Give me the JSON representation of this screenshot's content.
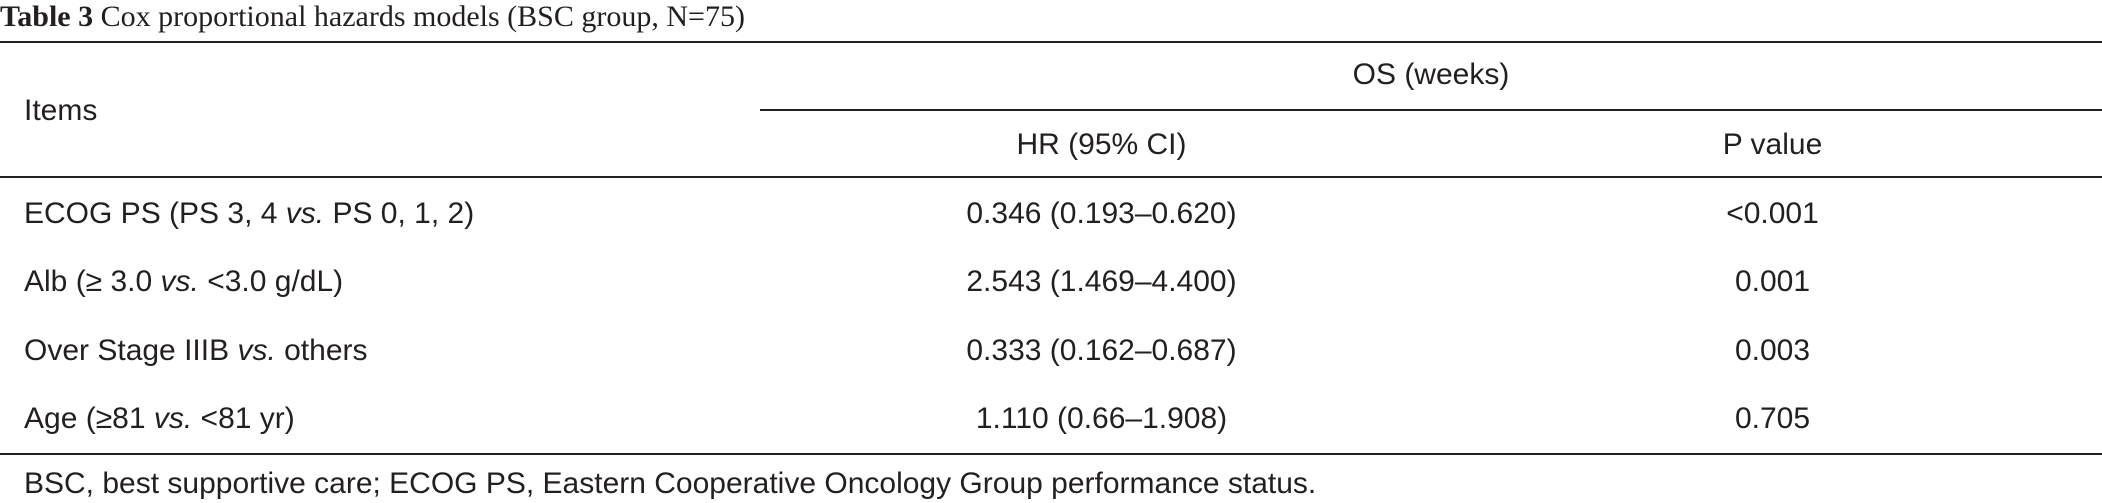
{
  "caption": {
    "label": "Table 3",
    "text": " Cox proportional hazards models (BSC group, N=75)"
  },
  "header": {
    "items": "Items",
    "group": "OS (weeks)",
    "col1": "HR (95% CI)",
    "col2": "P value"
  },
  "rows": [
    {
      "pre": "ECOG PS (PS 3, 4 ",
      "vs": "vs.",
      "post": " PS 0, 1, 2)",
      "hr": "0.346 (0.193–0.620)",
      "p": "<0.001"
    },
    {
      "pre": "Alb (≥ 3.0 ",
      "vs": "vs.",
      "post": " <3.0 g/dL)",
      "hr": "2.543 (1.469–4.400)",
      "p": "0.001"
    },
    {
      "pre": "Over Stage IIIB ",
      "vs": "vs.",
      "post": " others",
      "hr": "0.333 (0.162–0.687)",
      "p": "0.003"
    },
    {
      "pre": "Age (≥81 ",
      "vs": "vs.",
      "post": " <81 yr)",
      "hr": "1.110 (0.66–1.908)",
      "p": "0.705"
    }
  ],
  "footnote": "BSC, best supportive care; ECOG PS, Eastern Cooperative Oncology Group performance status."
}
